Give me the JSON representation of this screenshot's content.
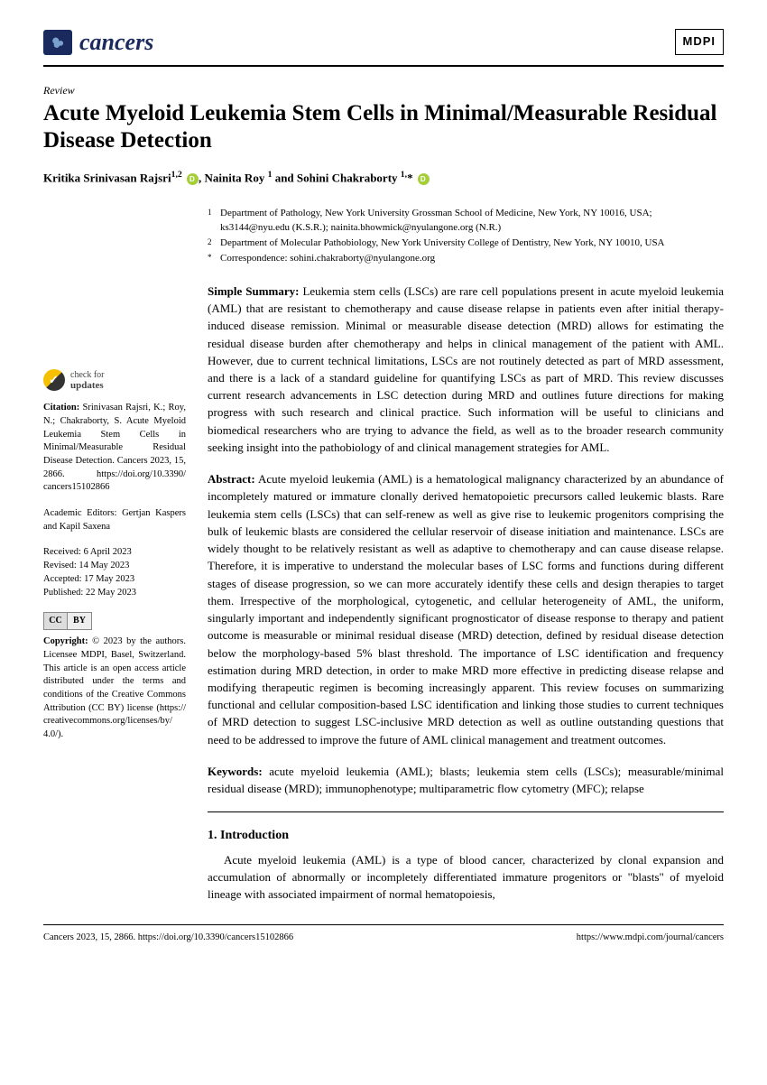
{
  "header": {
    "journal_name": "cancers",
    "publisher_badge": "MDPI"
  },
  "article": {
    "type": "Review",
    "title": "Acute Myeloid Leukemia Stem Cells in Minimal/Measurable Residual Disease Detection",
    "authors_html": "Kritika Srinivasan Rajsri ",
    "author1_name": "Kritika Srinivasan Rajsri",
    "author1_affil": "1,2",
    "author2_name": ", Nainita Roy",
    "author2_affil": "1",
    "author3_name": " and Sohini Chakraborty",
    "author3_affil": "1,"
  },
  "affiliations": {
    "a1_sup": "1",
    "a1_text": "Department of Pathology, New York University Grossman School of Medicine, New York, NY 10016, USA; ks3144@nyu.edu (K.S.R.); nainita.bhowmick@nyulangone.org (N.R.)",
    "a2_sup": "2",
    "a2_text": "Department of Molecular Pathobiology, New York University College of Dentistry, New York, NY 10010, USA",
    "corr_sup": "*",
    "corr_text": "Correspondence: sohini.chakraborty@nyulangone.org"
  },
  "sidebar": {
    "check_label1": "check for",
    "check_label2": "updates",
    "citation_label": "Citation:",
    "citation_text": " Srinivasan Rajsri, K.; Roy, N.; Chakraborty, S. Acute Myeloid Leukemia Stem Cells in Minimal/Measurable Residual Disease Detection. Cancers 2023, 15, 2866. https://doi.org/10.3390/ cancers15102866",
    "editors_label": "Academic Editors: ",
    "editors_text": "Gertjan Kaspers and Kapil Saxena",
    "received": "Received: 6 April 2023",
    "revised": "Revised: 14 May 2023",
    "accepted": "Accepted: 17 May 2023",
    "published": "Published: 22 May 2023",
    "cc_left": "cc",
    "cc_right": "⊙",
    "cc_by": "BY",
    "copyright_label": "Copyright:",
    "copyright_text": " © 2023 by the authors. Licensee MDPI, Basel, Switzerland. This article is an open access article distributed under the terms and conditions of the Creative Commons Attribution (CC BY) license (https:// creativecommons.org/licenses/by/ 4.0/)."
  },
  "summary": {
    "label": "Simple Summary:",
    "text": " Leukemia stem cells (LSCs) are rare cell populations present in acute myeloid leukemia (AML) that are resistant to chemotherapy and cause disease relapse in patients even after initial therapy-induced disease remission. Minimal or measurable disease detection (MRD) allows for estimating the residual disease burden after chemotherapy and helps in clinical management of the patient with AML. However, due to current technical limitations, LSCs are not routinely detected as part of MRD assessment, and there is a lack of a standard guideline for quantifying LSCs as part of MRD. This review discusses current research advancements in LSC detection during MRD and outlines future directions for making progress with such research and clinical practice. Such information will be useful to clinicians and biomedical researchers who are trying to advance the field, as well as to the broader research community seeking insight into the pathobiology of and clinical management strategies for AML."
  },
  "abstract": {
    "label": "Abstract:",
    "text": " Acute myeloid leukemia (AML) is a hematological malignancy characterized by an abundance of incompletely matured or immature clonally derived hematopoietic precursors called leukemic blasts. Rare leukemia stem cells (LSCs) that can self-renew as well as give rise to leukemic progenitors comprising the bulk of leukemic blasts are considered the cellular reservoir of disease initiation and maintenance. LSCs are widely thought to be relatively resistant as well as adaptive to chemotherapy and can cause disease relapse. Therefore, it is imperative to understand the molecular bases of LSC forms and functions during different stages of disease progression, so we can more accurately identify these cells and design therapies to target them. Irrespective of the morphological, cytogenetic, and cellular heterogeneity of AML, the uniform, singularly important and independently significant prognosticator of disease response to therapy and patient outcome is measurable or minimal residual disease (MRD) detection, defined by residual disease detection below the morphology-based 5% blast threshold. The importance of LSC identification and frequency estimation during MRD detection, in order to make MRD more effective in predicting disease relapse and modifying therapeutic regimen is becoming increasingly apparent. This review focuses on summarizing functional and cellular composition-based LSC identification and linking those studies to current techniques of MRD detection to suggest LSC-inclusive MRD detection as well as outline outstanding questions that need to be addressed to improve the future of AML clinical management and treatment outcomes."
  },
  "keywords": {
    "label": "Keywords:",
    "text": " acute myeloid leukemia (AML); blasts; leukemia stem cells (LSCs); measurable/minimal residual disease (MRD); immunophenotype; multiparametric flow cytometry (MFC); relapse"
  },
  "intro": {
    "heading": "1. Introduction",
    "body": "Acute myeloid leukemia (AML) is a type of blood cancer, characterized by clonal expansion and accumulation of abnormally or incompletely differentiated immature progenitors or \"blasts\" of myeloid lineage with associated impairment of normal hematopoiesis,"
  },
  "footer": {
    "left": "Cancers 2023, 15, 2866. https://doi.org/10.3390/cancers15102866",
    "right": "https://www.mdpi.com/journal/cancers"
  }
}
